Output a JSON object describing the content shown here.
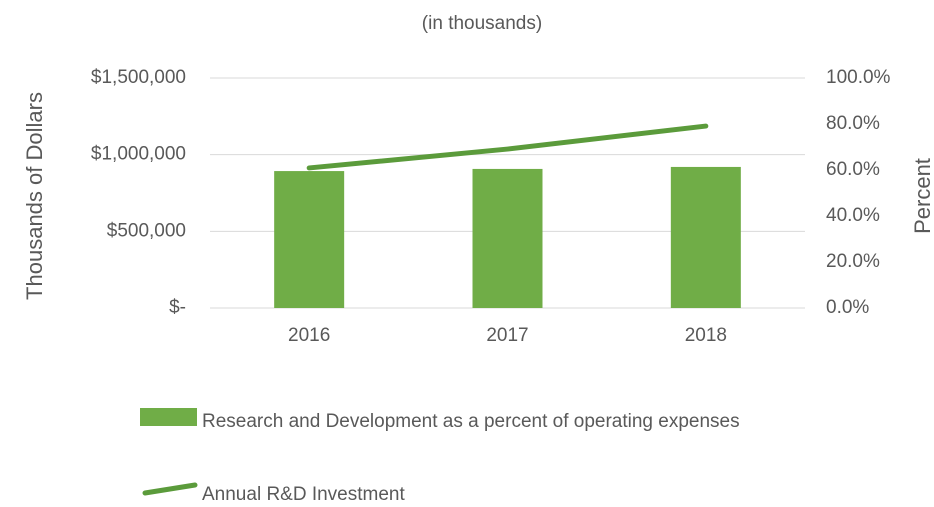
{
  "chart_data": {
    "type": "combo",
    "subtitle": "(in thousands)",
    "y_label": "Thousands of Dollars",
    "y2_label": "Percent",
    "categories": [
      "2016",
      "2017",
      "2018"
    ],
    "series": [
      {
        "name": "Research and Development as a percent of operating expenses",
        "type": "bar",
        "color": "#70ad47",
        "values": [
          893000,
          907000,
          920000
        ]
      },
      {
        "name": "Annual R&D Investment",
        "type": "line",
        "axis": "y2",
        "color": "#5b9b3b",
        "values": [
          60.9,
          69.1,
          79.1
        ]
      }
    ],
    "ylim": [
      0,
      1500000
    ],
    "yticks": [
      {
        "value": 0,
        "label": "$-"
      },
      {
        "value": 500000,
        "label": "$500,000"
      },
      {
        "value": 1000000,
        "label": "$1,000,000"
      },
      {
        "value": 1500000,
        "label": "$1,500,000"
      }
    ],
    "y2lim": [
      0,
      100
    ],
    "y2ticks": [
      {
        "value": 0,
        "label": "0.0%"
      },
      {
        "value": 20,
        "label": "20.0%"
      },
      {
        "value": 40,
        "label": "40.0%"
      },
      {
        "value": 60,
        "label": "60.0%"
      },
      {
        "value": 80,
        "label": "80.0%"
      },
      {
        "value": 100,
        "label": "100.0%"
      }
    ],
    "grid": true,
    "legend": "bottom"
  }
}
